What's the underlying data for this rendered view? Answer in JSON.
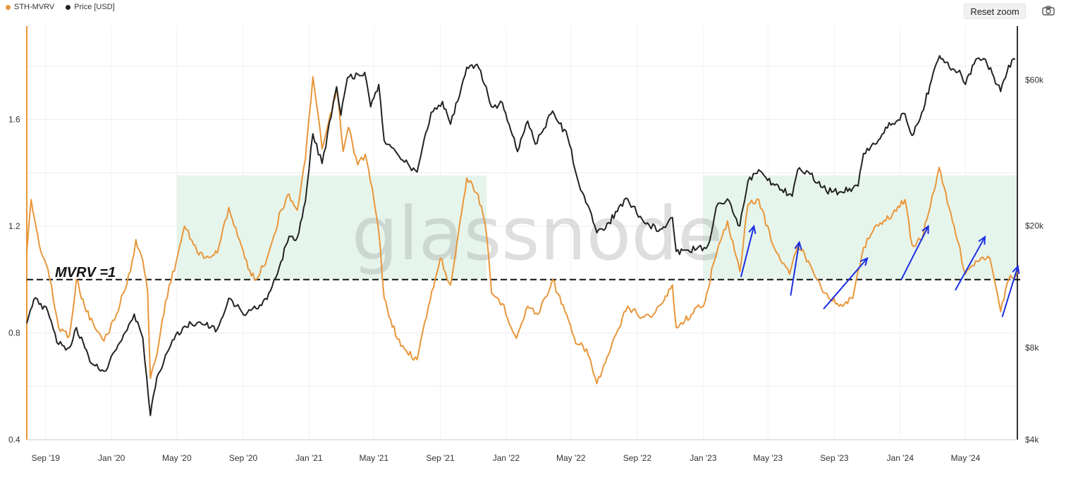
{
  "legend": [
    {
      "label": "STH-MVRV",
      "color": "#e8963a"
    },
    {
      "label": "Price [USD]",
      "color": "#222222"
    }
  ],
  "toolbar": {
    "reset_zoom_label": "Reset zoom",
    "camera_icon": "camera-icon"
  },
  "watermark": "glassnode",
  "chart_data": {
    "type": "line",
    "title": "",
    "x_start": "2019-07-28",
    "x_end": "2024-08-05",
    "x_ticks": [
      {
        "date": "2019-09-01",
        "label": "Sep '19"
      },
      {
        "date": "2020-01-01",
        "label": "Jan '20"
      },
      {
        "date": "2020-05-01",
        "label": "May '20"
      },
      {
        "date": "2020-09-01",
        "label": "Sep '20"
      },
      {
        "date": "2021-01-01",
        "label": "Jan '21"
      },
      {
        "date": "2021-05-01",
        "label": "May '21"
      },
      {
        "date": "2021-09-01",
        "label": "Sep '21"
      },
      {
        "date": "2022-01-01",
        "label": "Jan '22"
      },
      {
        "date": "2022-05-01",
        "label": "May '22"
      },
      {
        "date": "2022-09-01",
        "label": "Sep '22"
      },
      {
        "date": "2023-01-01",
        "label": "Jan '23"
      },
      {
        "date": "2023-05-01",
        "label": "May '23"
      },
      {
        "date": "2023-09-01",
        "label": "Sep '23"
      },
      {
        "date": "2024-01-01",
        "label": "Jan '24"
      },
      {
        "date": "2024-05-01",
        "label": "May '24"
      }
    ],
    "y_left": {
      "min": 0.4,
      "max": 1.95,
      "ticks": [
        {
          "value": 0.4,
          "label": "0.4"
        },
        {
          "value": 0.8,
          "label": "0.8"
        },
        {
          "value": 1.2,
          "label": "1.2"
        },
        {
          "value": 1.6,
          "label": "1.6"
        }
      ]
    },
    "y_right": {
      "scale": "log",
      "min": 4000,
      "max": 90000,
      "ticks": [
        {
          "value": 4000,
          "label": "$4k"
        },
        {
          "value": 8000,
          "label": "$8k"
        },
        {
          "value": 20000,
          "label": "$20k"
        },
        {
          "value": 60000,
          "label": "$60k"
        }
      ]
    },
    "grid": true,
    "legend_position": "top-left",
    "series": [
      {
        "name": "STH-MVRV",
        "axis": "left",
        "color": "#e8963a",
        "points": [
          [
            "2019-07-28",
            1.1
          ],
          [
            "2019-08-05",
            1.3
          ],
          [
            "2019-08-20",
            1.13
          ],
          [
            "2019-09-05",
            1.04
          ],
          [
            "2019-09-25",
            0.82
          ],
          [
            "2019-10-15",
            0.79
          ],
          [
            "2019-10-28",
            1.0
          ],
          [
            "2019-11-12",
            0.9
          ],
          [
            "2019-12-01",
            0.82
          ],
          [
            "2019-12-18",
            0.77
          ],
          [
            "2020-01-10",
            0.87
          ],
          [
            "2020-02-05",
            1.03
          ],
          [
            "2020-02-15",
            1.15
          ],
          [
            "2020-02-28",
            1.07
          ],
          [
            "2020-03-08",
            0.95
          ],
          [
            "2020-03-13",
            0.63
          ],
          [
            "2020-03-25",
            0.72
          ],
          [
            "2020-04-10",
            0.92
          ],
          [
            "2020-04-30",
            1.07
          ],
          [
            "2020-05-15",
            1.2
          ],
          [
            "2020-06-01",
            1.13
          ],
          [
            "2020-06-20",
            1.08
          ],
          [
            "2020-07-15",
            1.1
          ],
          [
            "2020-08-05",
            1.27
          ],
          [
            "2020-08-25",
            1.15
          ],
          [
            "2020-09-10",
            1.04
          ],
          [
            "2020-09-25",
            1.0
          ],
          [
            "2020-10-15",
            1.08
          ],
          [
            "2020-11-10",
            1.26
          ],
          [
            "2020-11-25",
            1.32
          ],
          [
            "2020-12-10",
            1.26
          ],
          [
            "2020-12-25",
            1.45
          ],
          [
            "2021-01-08",
            1.76
          ],
          [
            "2021-01-25",
            1.49
          ],
          [
            "2021-02-12",
            1.63
          ],
          [
            "2021-02-21",
            1.72
          ],
          [
            "2021-03-05",
            1.48
          ],
          [
            "2021-03-15",
            1.57
          ],
          [
            "2021-04-01",
            1.43
          ],
          [
            "2021-04-15",
            1.47
          ],
          [
            "2021-05-01",
            1.3
          ],
          [
            "2021-05-10",
            1.18
          ],
          [
            "2021-05-20",
            0.93
          ],
          [
            "2021-06-01",
            0.85
          ],
          [
            "2021-06-20",
            0.75
          ],
          [
            "2021-07-01",
            0.73
          ],
          [
            "2021-07-20",
            0.7
          ],
          [
            "2021-08-10",
            0.9
          ],
          [
            "2021-09-01",
            1.08
          ],
          [
            "2021-09-20",
            0.98
          ],
          [
            "2021-10-05",
            1.18
          ],
          [
            "2021-10-20",
            1.38
          ],
          [
            "2021-11-10",
            1.32
          ],
          [
            "2021-11-25",
            1.18
          ],
          [
            "2021-12-05",
            0.95
          ],
          [
            "2021-12-25",
            0.91
          ],
          [
            "2022-01-20",
            0.78
          ],
          [
            "2022-02-10",
            0.9
          ],
          [
            "2022-03-01",
            0.87
          ],
          [
            "2022-03-28",
            1.0
          ],
          [
            "2022-04-20",
            0.88
          ],
          [
            "2022-05-10",
            0.76
          ],
          [
            "2022-05-30",
            0.74
          ],
          [
            "2022-06-18",
            0.61
          ],
          [
            "2022-07-10",
            0.72
          ],
          [
            "2022-08-14",
            0.9
          ],
          [
            "2022-09-10",
            0.86
          ],
          [
            "2022-10-01",
            0.87
          ],
          [
            "2022-10-20",
            0.92
          ],
          [
            "2022-11-05",
            0.98
          ],
          [
            "2022-11-12",
            0.82
          ],
          [
            "2022-12-10",
            0.87
          ],
          [
            "2023-01-05",
            0.92
          ],
          [
            "2023-01-20",
            1.06
          ],
          [
            "2023-02-15",
            1.22
          ],
          [
            "2023-03-10",
            1.03
          ],
          [
            "2023-03-25",
            1.28
          ],
          [
            "2023-04-14",
            1.3
          ],
          [
            "2023-05-10",
            1.13
          ],
          [
            "2023-06-10",
            1.02
          ],
          [
            "2023-06-25",
            1.13
          ],
          [
            "2023-07-15",
            1.07
          ],
          [
            "2023-08-15",
            0.95
          ],
          [
            "2023-09-10",
            0.9
          ],
          [
            "2023-10-05",
            0.93
          ],
          [
            "2023-10-25",
            1.12
          ],
          [
            "2023-11-15",
            1.2
          ],
          [
            "2023-12-05",
            1.22
          ],
          [
            "2024-01-10",
            1.3
          ],
          [
            "2024-01-23",
            1.13
          ],
          [
            "2024-02-10",
            1.15
          ],
          [
            "2024-03-13",
            1.42
          ],
          [
            "2024-04-10",
            1.2
          ],
          [
            "2024-05-01",
            1.02
          ],
          [
            "2024-05-20",
            1.07
          ],
          [
            "2024-06-15",
            1.08
          ],
          [
            "2024-07-05",
            0.88
          ],
          [
            "2024-07-20",
            1.0
          ],
          [
            "2024-08-05",
            1.03
          ]
        ]
      },
      {
        "name": "Price [USD]",
        "axis": "right",
        "color": "#222222",
        "points": [
          [
            "2019-07-28",
            9600
          ],
          [
            "2019-08-10",
            11500
          ],
          [
            "2019-09-05",
            10500
          ],
          [
            "2019-09-25",
            8200
          ],
          [
            "2019-10-15",
            8000
          ],
          [
            "2019-10-28",
            9300
          ],
          [
            "2019-11-25",
            7100
          ],
          [
            "2019-12-18",
            6700
          ],
          [
            "2020-01-10",
            7900
          ],
          [
            "2020-02-12",
            10300
          ],
          [
            "2020-02-28",
            8600
          ],
          [
            "2020-03-13",
            4800
          ],
          [
            "2020-03-25",
            6400
          ],
          [
            "2020-04-29",
            8800
          ],
          [
            "2020-05-15",
            9400
          ],
          [
            "2020-06-10",
            9700
          ],
          [
            "2020-07-15",
            9200
          ],
          [
            "2020-08-05",
            11600
          ],
          [
            "2020-09-05",
            10200
          ],
          [
            "2020-10-15",
            11500
          ],
          [
            "2020-11-10",
            15300
          ],
          [
            "2020-11-25",
            18500
          ],
          [
            "2020-12-10",
            18300
          ],
          [
            "2020-12-25",
            24000
          ],
          [
            "2021-01-08",
            40000
          ],
          [
            "2021-01-25",
            32000
          ],
          [
            "2021-02-21",
            57000
          ],
          [
            "2021-03-01",
            46000
          ],
          [
            "2021-03-13",
            61000
          ],
          [
            "2021-04-14",
            63500
          ],
          [
            "2021-04-25",
            49000
          ],
          [
            "2021-05-10",
            58000
          ],
          [
            "2021-05-20",
            38000
          ],
          [
            "2021-06-20",
            33000
          ],
          [
            "2021-07-20",
            30000
          ],
          [
            "2021-08-15",
            47000
          ],
          [
            "2021-09-05",
            51000
          ],
          [
            "2021-09-20",
            43000
          ],
          [
            "2021-10-20",
            66000
          ],
          [
            "2021-11-08",
            67500
          ],
          [
            "2021-11-25",
            57000
          ],
          [
            "2021-12-05",
            49000
          ],
          [
            "2021-12-25",
            50500
          ],
          [
            "2022-01-22",
            35000
          ],
          [
            "2022-02-10",
            44000
          ],
          [
            "2022-02-24",
            37000
          ],
          [
            "2022-03-28",
            47500
          ],
          [
            "2022-04-25",
            39000
          ],
          [
            "2022-05-12",
            29000
          ],
          [
            "2022-06-18",
            19000
          ],
          [
            "2022-07-10",
            20500
          ],
          [
            "2022-08-14",
            24500
          ],
          [
            "2022-09-10",
            21000
          ],
          [
            "2022-10-10",
            19200
          ],
          [
            "2022-11-05",
            21300
          ],
          [
            "2022-11-12",
            16500
          ],
          [
            "2022-12-20",
            16800
          ],
          [
            "2023-01-10",
            17300
          ],
          [
            "2023-01-25",
            23000
          ],
          [
            "2023-02-15",
            24500
          ],
          [
            "2023-03-10",
            20000
          ],
          [
            "2023-03-25",
            28000
          ],
          [
            "2023-04-14",
            30500
          ],
          [
            "2023-05-10",
            27500
          ],
          [
            "2023-06-15",
            25000
          ],
          [
            "2023-06-25",
            30500
          ],
          [
            "2023-07-15",
            30000
          ],
          [
            "2023-08-17",
            26000
          ],
          [
            "2023-09-10",
            25800
          ],
          [
            "2023-10-15",
            27000
          ],
          [
            "2023-10-25",
            34500
          ],
          [
            "2023-11-15",
            37000
          ],
          [
            "2023-12-05",
            42000
          ],
          [
            "2024-01-10",
            46500
          ],
          [
            "2024-01-23",
            39500
          ],
          [
            "2024-02-10",
            47000
          ],
          [
            "2024-02-28",
            60000
          ],
          [
            "2024-03-14",
            72000
          ],
          [
            "2024-04-01",
            66000
          ],
          [
            "2024-04-20",
            64500
          ],
          [
            "2024-05-01",
            58000
          ],
          [
            "2024-05-20",
            70000
          ],
          [
            "2024-06-07",
            70000
          ],
          [
            "2024-07-05",
            55000
          ],
          [
            "2024-07-20",
            67000
          ],
          [
            "2024-08-01",
            70000
          ]
        ]
      }
    ],
    "reference_line": {
      "value": 1.0,
      "axis": "left",
      "style": "dashed",
      "label": "MVRV =1"
    },
    "shaded_regions": [
      {
        "from": "2020-05-01",
        "to": "2021-11-26",
        "y_from": 1.0,
        "y_to": 1.39,
        "color": "#e6f5ec"
      },
      {
        "from": "2023-01-01",
        "to": "2024-08-05",
        "y_from": 1.0,
        "y_to": 1.39,
        "color": "#e6f5ec"
      }
    ],
    "arrows": [
      {
        "from": [
          "2023-03-12",
          1.01
        ],
        "to": [
          "2023-04-05",
          1.2
        ]
      },
      {
        "from": [
          "2023-06-12",
          0.94
        ],
        "to": [
          "2023-06-28",
          1.14
        ]
      },
      {
        "from": [
          "2023-08-12",
          0.89
        ],
        "to": [
          "2023-11-01",
          1.08
        ]
      },
      {
        "from": [
          "2024-01-03",
          1.0
        ],
        "to": [
          "2024-02-22",
          1.2
        ]
      },
      {
        "from": [
          "2024-04-12",
          0.96
        ],
        "to": [
          "2024-06-06",
          1.16
        ]
      },
      {
        "from": [
          "2024-07-08",
          0.86
        ],
        "to": [
          "2024-08-06",
          1.05
        ]
      }
    ]
  }
}
